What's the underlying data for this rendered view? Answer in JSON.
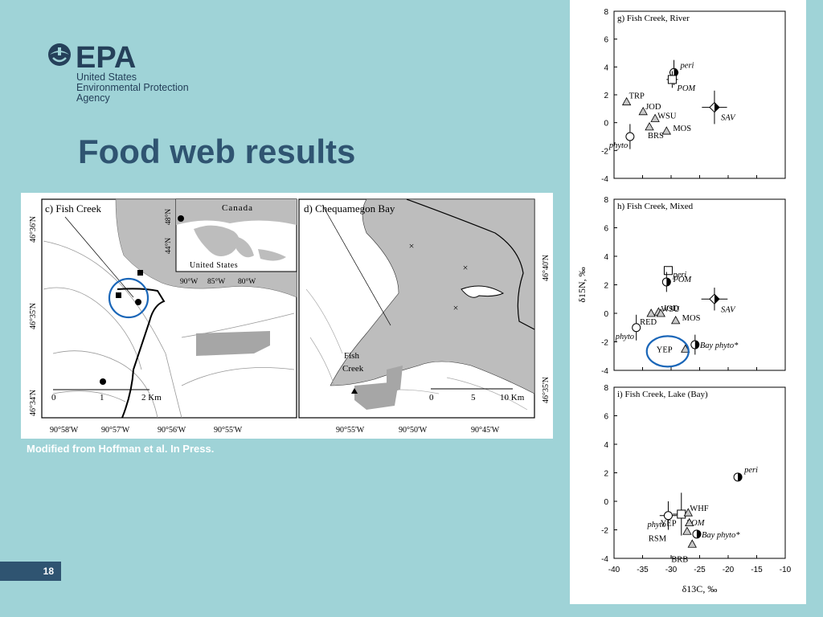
{
  "logo": {
    "acronym": "EPA",
    "org_lines": [
      "United States",
      "Environmental Protection",
      "Agency"
    ]
  },
  "title": "Food web results",
  "caption": "Modified from Hoffman et al. In Press.",
  "slide_number": "18",
  "maps": {
    "c": {
      "title": "c) Fish Creek",
      "lat_labels": [
        "46°36'N",
        "46°35'N",
        "46°34'N"
      ],
      "lon_labels": [
        "90°58'W",
        "90°57'W",
        "90°56'W",
        "90°55'W"
      ],
      "scale": [
        "0",
        "1",
        "2 Km"
      ]
    },
    "inset": {
      "country_top": "Canada",
      "country_bottom": "United States",
      "lat_labels": [
        "48°N",
        "44°N"
      ],
      "lon_labels": [
        "90°W",
        "85°W",
        "80°W"
      ]
    },
    "d": {
      "title": "d) Chequamegon Bay",
      "place": [
        "Fish",
        "Creek"
      ],
      "lat_labels": [
        "46°40'N",
        "46°35'N"
      ],
      "lon_labels": [
        "90°55'W",
        "90°50'W",
        "90°45'W"
      ],
      "scale": [
        "0",
        "5",
        "10 Km"
      ]
    }
  },
  "chart_data": [
    {
      "type": "scatter",
      "title": "g) Fish Creek, River",
      "xlim": [
        -40,
        -10
      ],
      "ylim": [
        -4,
        8
      ],
      "yticks": [
        "8",
        "6",
        "4",
        "2",
        "0",
        "-2",
        "-4"
      ],
      "points": [
        {
          "label": "peri",
          "x": -29.5,
          "y": 3.6,
          "marker": "half-circle",
          "label_style": "italic",
          "xerr": 0.8,
          "yerr": 0.9
        },
        {
          "label": "POM",
          "x": -29.8,
          "y": 3.1,
          "marker": "open-square",
          "label_style": "italic",
          "xerr": 1.0,
          "yerr": 0.6
        },
        {
          "label": "SAV",
          "x": -22.4,
          "y": 1.1,
          "marker": "half-diamond",
          "label_style": "italic",
          "xerr": 2.2,
          "yerr": 1.2
        },
        {
          "label": "TRP",
          "x": -37.8,
          "y": 1.5,
          "marker": "triangle",
          "label_style": "normal"
        },
        {
          "label": "JOD",
          "x": -34.9,
          "y": 0.8,
          "marker": "triangle",
          "label_style": "normal"
        },
        {
          "label": "WSU",
          "x": -32.8,
          "y": 0.3,
          "marker": "triangle",
          "label_style": "normal"
        },
        {
          "label": "MOS",
          "x": -30.8,
          "y": -0.6,
          "marker": "triangle",
          "label_style": "normal"
        },
        {
          "label": "BRS",
          "x": -33.8,
          "y": -0.3,
          "marker": "triangle",
          "label_style": "normal"
        },
        {
          "label": "phyto",
          "x": -37.2,
          "y": -1.0,
          "marker": "open-circle",
          "label_style": "italic",
          "yerr": 0.9
        }
      ]
    },
    {
      "type": "scatter",
      "title": "h) Fish Creek, Mixed",
      "xlim": [
        -40,
        -10
      ],
      "ylim": [
        -4,
        8
      ],
      "yticks": [
        "8",
        "6",
        "4",
        "2",
        "0",
        "-2",
        "-4"
      ],
      "ylabel": "δ15N, ‰",
      "points": [
        {
          "label": "POM",
          "x": -30.5,
          "y": 3.0,
          "marker": "open-square",
          "label_style": "italic"
        },
        {
          "label": "peri",
          "x": -30.8,
          "y": 2.2,
          "marker": "half-circle",
          "label_style": "italic",
          "yerr": 0.7
        },
        {
          "label": "SAV",
          "x": -22.4,
          "y": 1.0,
          "marker": "half-diamond",
          "label_style": "italic",
          "xerr": 2.3,
          "yerr": 0.8
        },
        {
          "label": "WSU",
          "x": -32.2,
          "y": 0.1,
          "marker": "triangle",
          "label_style": "normal"
        },
        {
          "label": "JOD",
          "x": -31.8,
          "y": 0.0,
          "marker": "triangle",
          "label_style": "normal"
        },
        {
          "label": "RED",
          "x": -33.5,
          "y": 0.0,
          "marker": "triangle",
          "label_style": "normal"
        },
        {
          "label": "MOS",
          "x": -29.2,
          "y": -0.5,
          "marker": "triangle",
          "label_style": "normal"
        },
        {
          "label": "phyto",
          "x": -36.1,
          "y": -1.0,
          "marker": "open-circle",
          "label_style": "italic",
          "yerr": 0.9
        },
        {
          "label": "YEP",
          "x": -27.5,
          "y": -2.5,
          "marker": "triangle",
          "label_style": "normal"
        },
        {
          "label": "Bay phyto*",
          "x": -25.8,
          "y": -2.2,
          "marker": "half-circle",
          "label_style": "italic",
          "yerr": 0.7
        }
      ]
    },
    {
      "type": "scatter",
      "title": "i) Fish Creek, Lake (Bay)",
      "xlim": [
        -40,
        -10
      ],
      "ylim": [
        -4,
        8
      ],
      "yticks": [
        "8",
        "6",
        "4",
        "2",
        "0",
        "-2",
        "-4"
      ],
      "xticks": [
        "-40",
        "-35",
        "-30",
        "-25",
        "-20",
        "-15",
        "-10"
      ],
      "xlabel": "δ13C, ‰",
      "points": [
        {
          "label": "peri",
          "x": -18.3,
          "y": 1.7,
          "marker": "half-circle",
          "label_style": "italic",
          "yerr": 0.3
        },
        {
          "label": "POM",
          "x": -28.2,
          "y": -0.9,
          "marker": "open-square",
          "label_style": "italic",
          "xerr": 1.5,
          "yerr": 1.5
        },
        {
          "label": "phyto",
          "x": -30.5,
          "y": -1.0,
          "marker": "open-circle",
          "label_style": "italic",
          "xerr": 1.5,
          "yerr": 1.0
        },
        {
          "label": "WHF",
          "x": -27.0,
          "y": -0.8,
          "marker": "triangle",
          "label_style": "normal"
        },
        {
          "label": "YEP",
          "x": -26.8,
          "y": -1.5,
          "marker": "triangle",
          "label_style": "normal"
        },
        {
          "label": "Bay phyto*",
          "x": -25.5,
          "y": -2.3,
          "marker": "half-circle",
          "label_style": "italic"
        },
        {
          "label": "RSM",
          "x": -27.2,
          "y": -2.1,
          "marker": "triangle",
          "label_style": "normal"
        },
        {
          "label": "BRB",
          "x": -26.3,
          "y": -3.0,
          "marker": "triangle",
          "label_style": "normal"
        }
      ]
    }
  ]
}
